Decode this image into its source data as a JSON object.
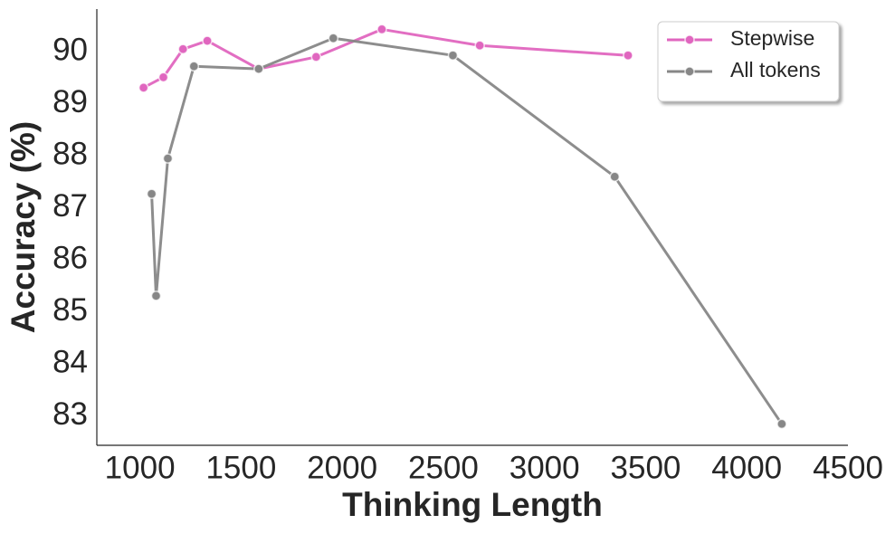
{
  "chart_data": {
    "type": "line",
    "x_label": "Thinking Length",
    "y_label": "Accuracy (%)",
    "xlim": [
      787,
      4500
    ],
    "ylim": [
      82.44,
      90.82
    ],
    "xticks": [
      1000,
      1500,
      2000,
      2500,
      3000,
      3500,
      4000,
      4500
    ],
    "yticks": [
      83,
      84,
      85,
      86,
      87,
      88,
      89,
      90
    ],
    "grid": false,
    "legend": "upper right",
    "series": [
      {
        "name": "Stepwise",
        "color": "#e066bf",
        "x": [
          1018,
          1116,
          1213,
          1333,
          1587,
          1871,
          2196,
          2680,
          3413
        ],
        "values": [
          89.31,
          89.51,
          90.05,
          90.21,
          89.67,
          89.9,
          90.43,
          90.12,
          89.93
        ]
      },
      {
        "name": "All tokens",
        "color": "#878787",
        "x": [
          1058,
          1080,
          1138,
          1267,
          1587,
          1956,
          2547,
          3347,
          4173
        ],
        "values": [
          87.27,
          85.31,
          87.95,
          89.72,
          89.67,
          90.26,
          89.93,
          87.6,
          82.85
        ]
      }
    ]
  }
}
